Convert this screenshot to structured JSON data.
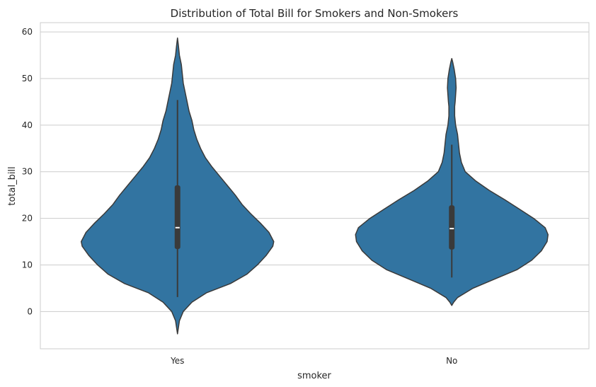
{
  "chart_data": {
    "type": "violin",
    "title": "Distribution of Total Bill for Smokers and Non-Smokers",
    "xlabel": "smoker",
    "ylabel": "total_bill",
    "categories": [
      "Yes",
      "No"
    ],
    "ylim": [
      -8,
      62
    ],
    "yticks": [
      0,
      10,
      20,
      30,
      40,
      50,
      60
    ],
    "grid": true,
    "colors": {
      "fill": "#3274a1",
      "edge": "#3a3a3a",
      "box": "#3a3a3a",
      "median": "#ffffff",
      "grid": "#cccccc",
      "spine": "#cccccc"
    },
    "violins": [
      {
        "category": "Yes",
        "min_extent": -4.8,
        "max_extent": 58.7,
        "whisker_low": 3.1,
        "whisker_high": 45.4,
        "q1": 13.4,
        "q3": 27.1,
        "median": 18.0,
        "profile": [
          [
            -4.8,
            0.0
          ],
          [
            -2,
            0.02
          ],
          [
            0,
            0.06
          ],
          [
            2,
            0.15
          ],
          [
            4,
            0.3
          ],
          [
            6,
            0.55
          ],
          [
            8,
            0.72
          ],
          [
            10,
            0.83
          ],
          [
            12,
            0.92
          ],
          [
            14,
            0.99
          ],
          [
            15,
            1.0
          ],
          [
            17,
            0.95
          ],
          [
            19,
            0.86
          ],
          [
            21,
            0.76
          ],
          [
            23,
            0.67
          ],
          [
            25,
            0.6
          ],
          [
            27,
            0.52
          ],
          [
            29,
            0.44
          ],
          [
            31,
            0.36
          ],
          [
            33,
            0.29
          ],
          [
            35,
            0.24
          ],
          [
            37,
            0.2
          ],
          [
            39,
            0.17
          ],
          [
            41,
            0.15
          ],
          [
            43,
            0.12
          ],
          [
            45,
            0.1
          ],
          [
            47,
            0.08
          ],
          [
            49,
            0.06
          ],
          [
            51,
            0.05
          ],
          [
            53,
            0.04
          ],
          [
            55,
            0.02
          ],
          [
            57,
            0.01
          ],
          [
            58.7,
            0.0
          ]
        ]
      },
      {
        "category": "No",
        "min_extent": 1.3,
        "max_extent": 54.3,
        "whisker_low": 7.3,
        "whisker_high": 35.8,
        "q1": 13.3,
        "q3": 22.8,
        "median": 17.8,
        "profile": [
          [
            1.3,
            0.0
          ],
          [
            2,
            0.02
          ],
          [
            3,
            0.06
          ],
          [
            5,
            0.22
          ],
          [
            7,
            0.45
          ],
          [
            9,
            0.68
          ],
          [
            11,
            0.83
          ],
          [
            13,
            0.93
          ],
          [
            15,
            0.99
          ],
          [
            16.5,
            1.0
          ],
          [
            18,
            0.97
          ],
          [
            20,
            0.85
          ],
          [
            22,
            0.7
          ],
          [
            24,
            0.55
          ],
          [
            26,
            0.39
          ],
          [
            28,
            0.25
          ],
          [
            30,
            0.14
          ],
          [
            32,
            0.1
          ],
          [
            34,
            0.08
          ],
          [
            36,
            0.07
          ],
          [
            38,
            0.06
          ],
          [
            40,
            0.04
          ],
          [
            42,
            0.03
          ],
          [
            44,
            0.03
          ],
          [
            45,
            0.035
          ],
          [
            46.5,
            0.04
          ],
          [
            48,
            0.045
          ],
          [
            50,
            0.04
          ],
          [
            52,
            0.025
          ],
          [
            53.5,
            0.01
          ],
          [
            54.3,
            0.0
          ]
        ]
      }
    ]
  }
}
